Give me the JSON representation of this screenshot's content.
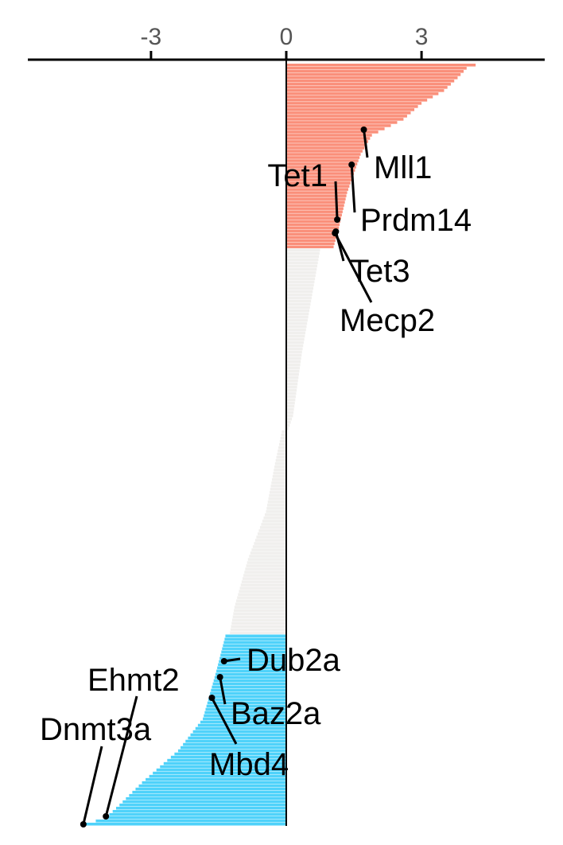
{
  "chart_data": {
    "type": "bar",
    "orientation": "horizontal",
    "title": "",
    "xlabel": "",
    "ylabel": "",
    "xlim": [
      -5.7,
      5.8
    ],
    "x_ticks": [
      -3,
      0,
      3
    ],
    "x_tick_labels": [
      "-3",
      "0",
      "3"
    ],
    "x_axis_position": "top",
    "grid": false,
    "legend": "none",
    "colors": {
      "up": "#FA8F7A",
      "neutral": "#F0EFED",
      "down": "#4FD2FA",
      "zero_line": "#000000",
      "axis": "#000000",
      "tick_label": "#555555"
    },
    "groups": {
      "up_count": 58,
      "neutral_count": 121,
      "down_count": 60
    },
    "sorted_values_keypoints": [
      [
        0,
        4.2
      ],
      [
        1,
        4.0
      ],
      [
        4,
        3.8
      ],
      [
        8,
        3.5
      ],
      [
        12,
        3.0
      ],
      [
        17,
        2.6
      ],
      [
        22,
        1.9
      ],
      [
        28,
        1.65
      ],
      [
        40,
        1.35
      ],
      [
        52,
        1.15
      ],
      [
        57,
        1.05
      ],
      [
        58,
        0.75
      ],
      [
        70,
        0.6
      ],
      [
        90,
        0.35
      ],
      [
        110,
        0.15
      ],
      [
        114,
        0.05
      ],
      [
        115,
        -0.1
      ],
      [
        125,
        -0.25
      ],
      [
        140,
        -0.45
      ],
      [
        155,
        -0.85
      ],
      [
        170,
        -1.15
      ],
      [
        178,
        -1.25
      ],
      [
        179,
        -1.35
      ],
      [
        190,
        -1.55
      ],
      [
        205,
        -1.85
      ],
      [
        215,
        -2.4
      ],
      [
        225,
        -3.2
      ],
      [
        232,
        -3.7
      ],
      [
        236,
        -4.0
      ],
      [
        238,
        -4.45
      ]
    ],
    "labeled_genes": [
      {
        "name": "Mll1",
        "value": 1.72
      },
      {
        "name": "Prdm14",
        "value": 1.45
      },
      {
        "name": "Tet1",
        "value": 1.13
      },
      {
        "name": "Tet3",
        "value": 1.1
      },
      {
        "name": "Mecp2",
        "value": 1.08
      },
      {
        "name": "Dub2a",
        "value": -1.38
      },
      {
        "name": "Baz2a",
        "value": -1.47
      },
      {
        "name": "Mbd4",
        "value": -1.65
      },
      {
        "name": "Ehmt2",
        "value": -4.0
      },
      {
        "name": "Dnmt3a",
        "value": -4.5
      }
    ]
  }
}
